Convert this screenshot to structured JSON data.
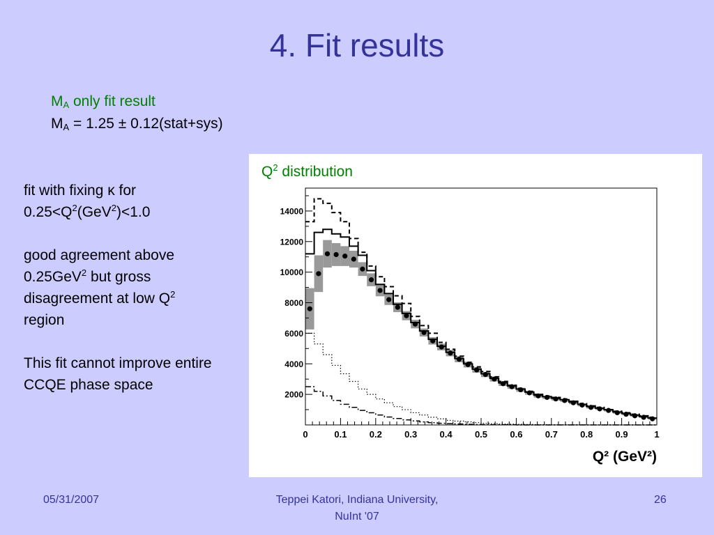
{
  "slide": {
    "title": "4. Fit results",
    "fit_result": {
      "line1_main": "M",
      "line1_sub": "A",
      "line1_rest": " only fit result",
      "line2_main": "M",
      "line2_sub": "A",
      "line2_rest": " =  1.25 ± 0.12(stat+sys)"
    },
    "notes": {
      "p1_a": "fit with fixing κ for",
      "p1_b": "0.25<Q",
      "p1_b_sup": "2",
      "p1_c": "(GeV",
      "p1_c_sup": "2",
      "p1_d": ")<1.0",
      "p2_a": "good agreement above",
      "p2_b": "0.25GeV",
      "p2_b_sup": "2",
      "p2_c": " but gross",
      "p2_d": "disagreement at low Q",
      "p2_d_sup": "2",
      "p2_e": "region",
      "p3": "This fit cannot improve entire CCQE phase space"
    },
    "chart_caption_main": "Q",
    "chart_caption_sup": "2",
    "chart_caption_rest": " distribution",
    "footer": {
      "date": "05/31/2007",
      "author_line1": "Teppei Katori, Indiana University,",
      "author_line2": "NuInt '07",
      "page": "26"
    }
  },
  "chart_data": {
    "type": "line",
    "xlabel": "Q² (GeV²)",
    "ylabel": "",
    "xlim": [
      0,
      1
    ],
    "ylim": [
      0,
      15500
    ],
    "x_ticks": [
      "0",
      "0.1",
      "0.2",
      "0.3",
      "0.4",
      "0.5",
      "0.6",
      "0.7",
      "0.8",
      "0.9",
      "1"
    ],
    "y_ticks": [
      "2000",
      "4000",
      "6000",
      "8000",
      "10000",
      "12000",
      "14000"
    ],
    "bin_edges": [
      0,
      0.025,
      0.05,
      0.075,
      0.1,
      0.125,
      0.15,
      0.175,
      0.2,
      0.225,
      0.25,
      0.275,
      0.3,
      0.325,
      0.35,
      0.375,
      0.4,
      0.425,
      0.45,
      0.475,
      0.5,
      0.525,
      0.55,
      0.575,
      0.6,
      0.625,
      0.65,
      0.675,
      0.7,
      0.725,
      0.75,
      0.775,
      0.8,
      0.825,
      0.85,
      0.875,
      0.9,
      0.925,
      0.95,
      0.975,
      1.0
    ],
    "data_points": {
      "values": [
        7600,
        9900,
        11200,
        11150,
        11050,
        10850,
        10200,
        9500,
        8800,
        8200,
        7700,
        7150,
        6600,
        6050,
        5500,
        5100,
        4700,
        4300,
        3950,
        3600,
        3300,
        3000,
        2700,
        2500,
        2300,
        2100,
        1900,
        1800,
        1700,
        1600,
        1450,
        1300,
        1150,
        1050,
        950,
        800,
        700,
        600,
        500,
        400
      ],
      "errors": [
        1350,
        1200,
        900,
        750,
        650,
        550,
        450,
        420,
        380,
        350,
        320,
        300,
        280,
        260,
        240,
        220,
        210,
        200,
        190,
        180,
        170,
        160,
        150,
        140,
        130,
        120,
        110,
        100,
        100,
        90,
        90,
        80,
        80,
        70,
        70,
        60,
        60,
        60,
        50,
        50
      ]
    },
    "series": [
      {
        "style": "solid",
        "values": [
          11200,
          12600,
          12800,
          12500,
          12300,
          11700,
          11100,
          10100,
          9200,
          8600,
          7900,
          7300,
          6700,
          6150,
          5600,
          5150,
          4750,
          4350,
          4000,
          3650,
          3350,
          3050,
          2750,
          2550,
          2350,
          2150,
          1950,
          1850,
          1750,
          1650,
          1500,
          1350,
          1200,
          1100,
          1000,
          850,
          750,
          650,
          550,
          450
        ]
      },
      {
        "style": "dashed",
        "values": [
          13300,
          14800,
          14500,
          13900,
          13300,
          12200,
          11300,
          10400,
          9700,
          9050,
          8450,
          7950,
          7100,
          6500,
          6000,
          5400,
          4950,
          4500,
          4100,
          3800,
          3500,
          3150,
          2850,
          2600,
          2400,
          2200,
          2000,
          1900,
          1800,
          1700,
          1550,
          1400,
          1250,
          1150,
          1000,
          900,
          800,
          700,
          600,
          500
        ]
      },
      {
        "style": "dotted",
        "values": [
          6000,
          5300,
          4600,
          3900,
          3350,
          2850,
          2350,
          2000,
          1700,
          1450,
          1200,
          1000,
          800,
          650,
          500,
          400,
          300,
          250,
          200,
          150,
          100,
          80,
          60,
          50,
          40,
          30,
          20,
          20,
          10,
          10,
          10,
          10,
          0,
          0,
          0,
          0,
          0,
          0,
          0,
          0
        ]
      },
      {
        "style": "dashdot",
        "values": [
          2500,
          2200,
          1900,
          1600,
          1350,
          1150,
          950,
          800,
          650,
          520,
          420,
          330,
          260,
          200,
          150,
          110,
          80,
          60,
          40,
          30,
          20,
          10,
          10,
          10,
          0,
          0,
          0,
          0,
          0,
          0,
          0,
          0,
          0,
          0,
          0,
          0,
          0,
          0,
          0,
          0
        ]
      }
    ],
    "colors": {
      "data": "#000000",
      "error_band": "#999999",
      "background": "#ffffff"
    }
  }
}
